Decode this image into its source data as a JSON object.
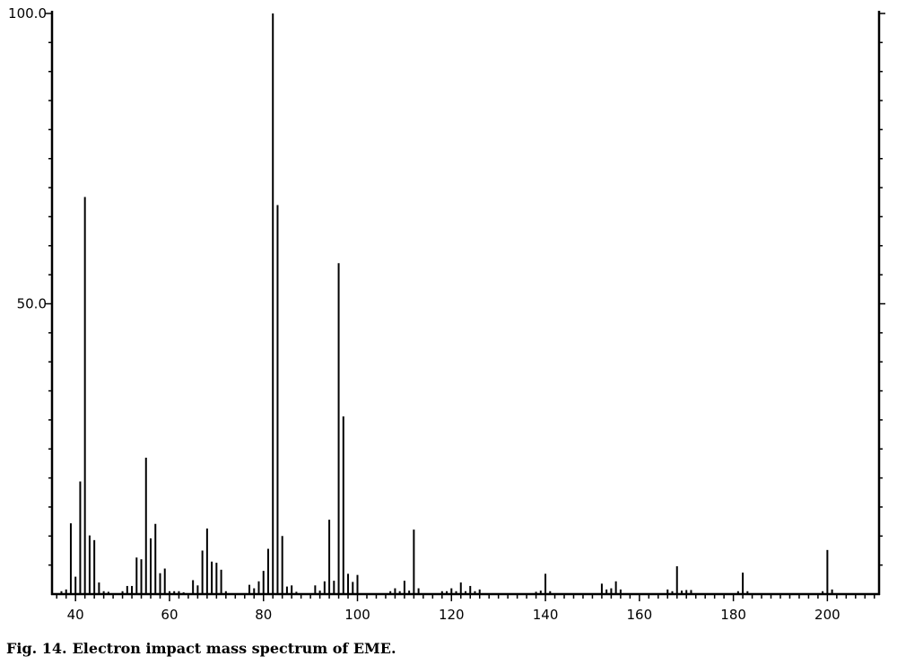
{
  "caption": {
    "label": "Fig. 14.",
    "text": "Electron impact mass spectrum of EME."
  },
  "chart_data": {
    "type": "bar",
    "title": "",
    "xlabel": "",
    "ylabel": "",
    "xlim": [
      35,
      211
    ],
    "ylim": [
      0,
      100
    ],
    "x_ticks": [
      40,
      60,
      80,
      100,
      120,
      140,
      160,
      180,
      200
    ],
    "y_ticks": [
      50.0,
      100.0
    ],
    "y_tick_labels": [
      "50.0",
      "100.0"
    ],
    "grid": false,
    "legend": "none",
    "series": [
      {
        "x": [
          37,
          38,
          39,
          40,
          41,
          42,
          43,
          44,
          45,
          46,
          47,
          50,
          51,
          52,
          53,
          54,
          55,
          56,
          57,
          58,
          59,
          60,
          61,
          62,
          63,
          65,
          66,
          67,
          68,
          69,
          70,
          71,
          72,
          77,
          78,
          79,
          80,
          81,
          82,
          83,
          84,
          85,
          86,
          87,
          91,
          92,
          93,
          94,
          95,
          96,
          97,
          98,
          99,
          100,
          107,
          108,
          109,
          110,
          111,
          112,
          113,
          118,
          119,
          120,
          121,
          122,
          123,
          124,
          125,
          126,
          138,
          139,
          140,
          141,
          152,
          153,
          154,
          155,
          156,
          166,
          167,
          168,
          169,
          170,
          171,
          181,
          182,
          183,
          199,
          200,
          201
        ],
        "values": [
          0.5,
          0.8,
          12.2,
          3.0,
          19.4,
          68.4,
          10.1,
          9.3,
          2.0,
          0.5,
          0.4,
          0.5,
          1.4,
          1.4,
          6.3,
          6.0,
          23.5,
          9.6,
          12.1,
          3.6,
          4.4,
          0.5,
          0.5,
          0.5,
          0.3,
          2.4,
          1.5,
          7.5,
          11.3,
          5.6,
          5.4,
          4.2,
          0.5,
          1.6,
          1.0,
          2.2,
          4.0,
          7.8,
          100.0,
          67.0,
          10.0,
          1.3,
          1.5,
          0.4,
          1.5,
          0.6,
          2.2,
          12.8,
          2.3,
          57.0,
          30.6,
          3.5,
          2.1,
          3.3,
          0.5,
          1.0,
          0.5,
          2.3,
          0.6,
          11.1,
          1.0,
          0.5,
          0.5,
          1.0,
          0.5,
          2.0,
          0.5,
          1.4,
          0.5,
          0.8,
          0.4,
          0.6,
          3.5,
          0.5,
          1.8,
          0.8,
          1.0,
          2.2,
          0.8,
          0.8,
          0.5,
          4.8,
          0.6,
          0.7,
          0.7,
          0.5,
          3.7,
          0.5,
          0.5,
          7.6,
          0.8
        ]
      }
    ]
  }
}
